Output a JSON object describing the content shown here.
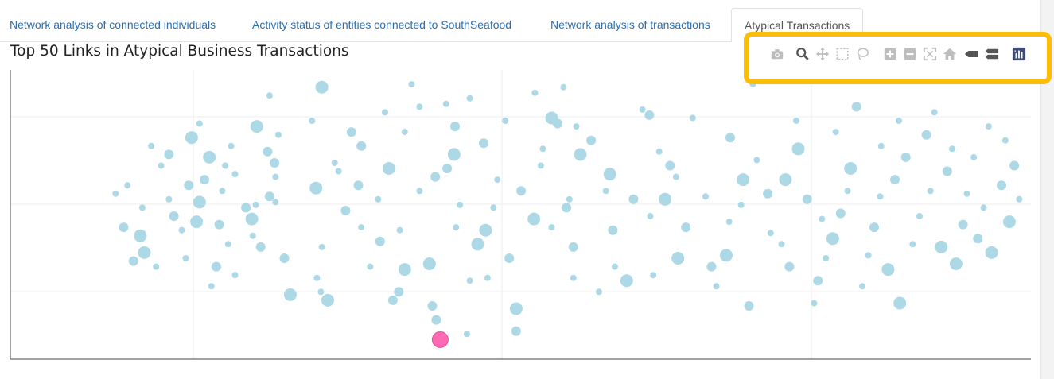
{
  "tabs": [
    {
      "label": "Network analysis of connected individuals",
      "active": false
    },
    {
      "label": "Activity status of entities connected to SouthSeafood",
      "active": false
    },
    {
      "label": "Network analysis of transactions",
      "active": false
    },
    {
      "label": "Atypical Transactions",
      "active": true
    }
  ],
  "modebar": {
    "buttons": [
      "camera-icon",
      "zoom-icon",
      "pan-icon",
      "box-select-icon",
      "lasso-icon",
      "zoom-in-icon",
      "zoom-out-icon",
      "autoscale-icon",
      "home-icon",
      "hover-closest-icon",
      "hover-compare-icon",
      "plotly-logo-icon"
    ],
    "highlight_color": "#fbbd08"
  },
  "chart_data": {
    "type": "scatter",
    "title": "Top 50 Links in Atypical Business Transactions",
    "xlabel": "",
    "ylabel": "",
    "xlim": [
      0,
      1
    ],
    "ylim": [
      0,
      1
    ],
    "grid": true,
    "legend": "none",
    "point_color": "#add8e6",
    "highlight_color": "#ff69b4",
    "points": [
      [
        0.117,
        0.74
      ],
      [
        0.155,
        0.6
      ],
      [
        0.166,
        0.82
      ],
      [
        0.127,
        0.67
      ],
      [
        0.106,
        0.42
      ],
      [
        0.099,
        0.33
      ],
      [
        0.152,
        0.34
      ],
      [
        0.163,
        0.47
      ],
      [
        0.135,
        0.71
      ],
      [
        0.135,
        0.55
      ],
      [
        0.122,
        0.31
      ],
      [
        0.186,
        0.46
      ],
      [
        0.192,
        0.67
      ],
      [
        0.189,
        0.58
      ],
      [
        0.158,
        0.77
      ],
      [
        0.171,
        0.62
      ],
      [
        0.178,
        0.24
      ],
      [
        0.166,
        0.54
      ],
      [
        0.213,
        0.52
      ],
      [
        0.202,
        0.64
      ],
      [
        0.223,
        0.53
      ],
      [
        0.228,
        0.38
      ],
      [
        0.202,
        0.28
      ],
      [
        0.195,
        0.39
      ],
      [
        0.224,
        0.81
      ],
      [
        0.237,
        0.56
      ],
      [
        0.22,
        0.42
      ],
      [
        0.219,
        0.48
      ],
      [
        0.242,
        0.68
      ],
      [
        0.246,
        0.78
      ],
      [
        0.243,
        0.63
      ],
      [
        0.235,
        0.72
      ],
      [
        0.243,
        0.54
      ],
      [
        0.237,
        0.92
      ],
      [
        0.284,
        0.59
      ],
      [
        0.32,
        0.79
      ],
      [
        0.289,
        0.22
      ],
      [
        0.258,
        0.21
      ],
      [
        0.252,
        0.34
      ],
      [
        0.29,
        0.38
      ],
      [
        0.307,
        0.65
      ],
      [
        0.314,
        0.51
      ],
      [
        0.28,
        0.83
      ],
      [
        0.285,
        0.27
      ],
      [
        0.296,
        0.19
      ],
      [
        0.327,
        0.6
      ],
      [
        0.303,
        0.68
      ],
      [
        0.29,
        0.95
      ],
      [
        0.33,
        0.74
      ],
      [
        0.339,
        0.31
      ],
      [
        0.33,
        0.45
      ],
      [
        0.362,
        0.19
      ],
      [
        0.369,
        0.44
      ],
      [
        0.347,
        0.55
      ],
      [
        0.358,
        0.66
      ],
      [
        0.349,
        0.4
      ],
      [
        0.354,
        0.86
      ],
      [
        0.374,
        0.3
      ],
      [
        0.368,
        0.22
      ],
      [
        0.381,
        0.96
      ],
      [
        0.374,
        0.79
      ],
      [
        0.406,
        0.12
      ],
      [
        0.389,
        0.88
      ],
      [
        0.389,
        0.58
      ],
      [
        0.399,
        0.32
      ],
      [
        0.405,
        0.63
      ],
      [
        0.416,
        0.89
      ],
      [
        0.424,
        0.71
      ],
      [
        0.402,
        0.17
      ],
      [
        0.426,
        0.45
      ],
      [
        0.43,
        0.53
      ],
      [
        0.417,
        0.66
      ],
      [
        0.437,
        0.07
      ],
      [
        0.44,
        0.91
      ],
      [
        0.448,
        0.39
      ],
      [
        0.425,
        0.81
      ],
      [
        0.44,
        0.26
      ],
      [
        0.456,
        0.44
      ],
      [
        0.454,
        0.75
      ],
      [
        0.468,
        0.62
      ],
      [
        0.476,
        0.83
      ],
      [
        0.48,
        0.34
      ],
      [
        0.458,
        0.27
      ],
      [
        0.464,
        0.52
      ],
      [
        0.487,
        0.16
      ],
      [
        0.492,
        0.58
      ],
      [
        0.506,
        0.93
      ],
      [
        0.505,
        0.48
      ],
      [
        0.487,
        0.08
      ],
      [
        0.512,
        0.67
      ],
      [
        0.514,
        0.73
      ],
      [
        0.529,
        0.82
      ],
      [
        0.523,
        0.45
      ],
      [
        0.535,
        0.95
      ],
      [
        0.523,
        0.84
      ],
      [
        0.538,
        0.52
      ],
      [
        0.545,
        0.27
      ],
      [
        0.552,
        0.71
      ],
      [
        0.545,
        0.38
      ],
      [
        0.548,
        0.81
      ],
      [
        0.541,
        0.55
      ],
      [
        0.563,
        0.76
      ],
      [
        0.571,
        0.22
      ],
      [
        0.578,
        0.58
      ],
      [
        0.582,
        0.64
      ],
      [
        0.585,
        0.44
      ],
      [
        0.587,
        0.31
      ],
      [
        0.599,
        0.26
      ],
      [
        0.606,
        0.55
      ],
      [
        0.615,
        0.87
      ],
      [
        0.623,
        0.49
      ],
      [
        0.622,
        0.85
      ],
      [
        0.626,
        0.28
      ],
      [
        0.632,
        0.72
      ],
      [
        0.638,
        0.55
      ],
      [
        0.643,
        0.67
      ],
      [
        0.649,
        0.63
      ],
      [
        0.651,
        0.34
      ],
      [
        0.659,
        0.45
      ],
      [
        0.666,
        0.84
      ],
      [
        0.679,
        0.56
      ],
      [
        0.685,
        0.31
      ],
      [
        0.69,
        0.24
      ],
      [
        0.703,
        0.47
      ],
      [
        0.7,
        0.35
      ],
      [
        0.704,
        0.77
      ],
      [
        0.715,
        0.53
      ],
      [
        0.717,
        0.62
      ],
      [
        0.723,
        0.17
      ],
      [
        0.727,
        0.96
      ],
      [
        0.731,
        0.69
      ],
      [
        0.742,
        0.57
      ],
      [
        0.745,
        0.43
      ],
      [
        0.756,
        0.39
      ],
      [
        0.76,
        0.62
      ],
      [
        0.764,
        0.31
      ],
      [
        0.771,
        0.83
      ],
      [
        0.773,
        0.73
      ],
      [
        0.782,
        0.55
      ],
      [
        0.789,
        0.18
      ],
      [
        0.797,
        0.48
      ],
      [
        0.793,
        0.26
      ],
      [
        0.801,
        0.34
      ],
      [
        0.811,
        0.79
      ],
      [
        0.808,
        0.41
      ],
      [
        0.816,
        0.5
      ],
      [
        0.823,
        0.58
      ],
      [
        0.826,
        0.66
      ],
      [
        0.832,
        0.88
      ],
      [
        0.838,
        0.24
      ],
      [
        0.844,
        0.35
      ],
      [
        0.85,
        0.45
      ],
      [
        0.856,
        0.56
      ],
      [
        0.857,
        0.74
      ],
      [
        0.864,
        0.3
      ],
      [
        0.871,
        0.62
      ],
      [
        0.875,
        0.83
      ],
      [
        0.876,
        0.18
      ],
      [
        0.882,
        0.7
      ],
      [
        0.889,
        0.39
      ],
      [
        0.896,
        0.49
      ],
      [
        0.903,
        0.78
      ],
      [
        0.907,
        0.58
      ],
      [
        0.911,
        0.86
      ],
      [
        0.918,
        0.38
      ],
      [
        0.924,
        0.65
      ],
      [
        0.929,
        0.73
      ],
      [
        0.933,
        0.32
      ],
      [
        0.94,
        0.46
      ],
      [
        0.944,
        0.57
      ],
      [
        0.951,
        0.7
      ],
      [
        0.955,
        0.41
      ],
      [
        0.961,
        0.52
      ],
      [
        0.966,
        0.81
      ],
      [
        0.969,
        0.36
      ],
      [
        0.979,
        0.6
      ],
      [
        0.983,
        0.76
      ],
      [
        0.987,
        0.47
      ],
      [
        0.992,
        0.67
      ],
      [
        0.997,
        0.55
      ],
      [
        0.081,
        0.57
      ],
      [
        0.089,
        0.45
      ],
      [
        0.093,
        0.6
      ],
      [
        0.108,
        0.52
      ],
      [
        0.11,
        0.36
      ],
      [
        0.14,
        0.49
      ],
      [
        0.148,
        0.44
      ],
      [
        0.176,
        0.7
      ],
      [
        0.183,
        0.31
      ],
      [
        0.198,
        0.74
      ]
    ],
    "highlight_point": [
      0.41,
      0.05
    ]
  }
}
